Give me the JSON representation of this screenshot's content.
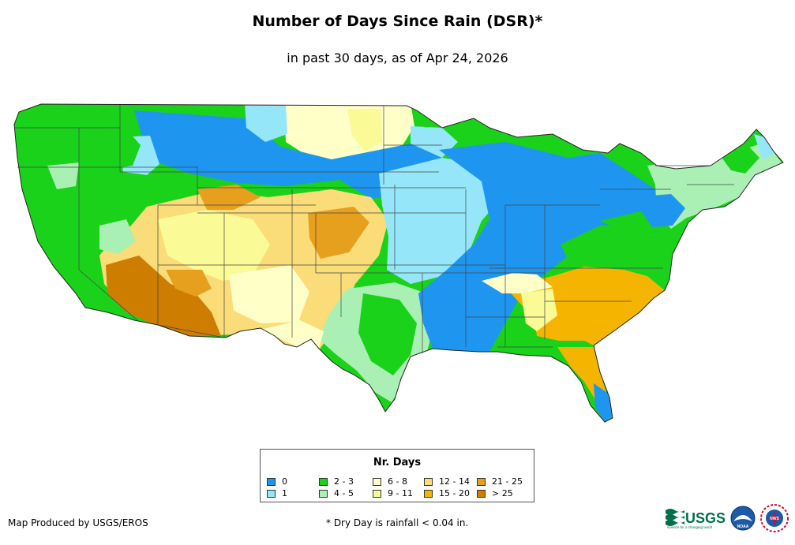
{
  "title": "Number of Days Since Rain (DSR)*",
  "subtitle": "in past 30 days, as of Apr 24, 2026",
  "legend": {
    "title": "Nr. Days",
    "items": [
      {
        "label": "0",
        "color": "#1e96f0"
      },
      {
        "label": "1",
        "color": "#96e6fa"
      },
      {
        "label": "2 - 3",
        "color": "#19d219"
      },
      {
        "label": "4 - 5",
        "color": "#aaf0b4"
      },
      {
        "label": "6 - 8",
        "color": "#ffffc8"
      },
      {
        "label": "9 - 11",
        "color": "#fafa96"
      },
      {
        "label": "12 - 14",
        "color": "#fadc78"
      },
      {
        "label": "15 - 20",
        "color": "#f5b400"
      },
      {
        "label": "21 - 25",
        "color": "#e6a01e"
      },
      {
        "label": "> 25",
        "color": "#cd7d00"
      }
    ]
  },
  "footer": {
    "producer": "Map Produced by USGS/EROS",
    "note": "* Dry Day is rainfall < 0.04 in."
  },
  "logos": {
    "usgs": "USGS",
    "usgs_tagline": "science for a changing world",
    "noaa": "NOAA",
    "nws": "NWS"
  }
}
